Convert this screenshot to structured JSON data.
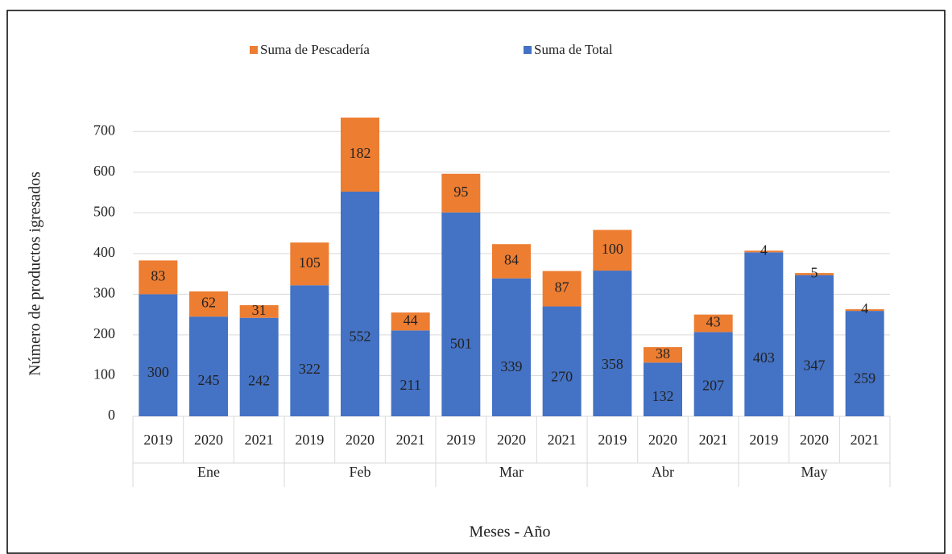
{
  "chart_data": {
    "type": "bar",
    "stacked": true,
    "groups": [
      "Ene",
      "Feb",
      "Mar",
      "Abr",
      "May"
    ],
    "categories": [
      "2019",
      "2020",
      "2021",
      "2019",
      "2020",
      "2021",
      "2019",
      "2020",
      "2021",
      "2019",
      "2020",
      "2021",
      "2019",
      "2020",
      "2021"
    ],
    "series": [
      {
        "name": "Suma de Pescadería",
        "color": "#ed7d31",
        "values": [
          83,
          62,
          31,
          105,
          182,
          44,
          95,
          84,
          87,
          100,
          38,
          43,
          4,
          5,
          4
        ]
      },
      {
        "name": "Suma de Total",
        "color": "#4472c4",
        "values": [
          300,
          245,
          242,
          322,
          552,
          211,
          501,
          339,
          270,
          358,
          132,
          207,
          403,
          347,
          259
        ]
      }
    ],
    "y_label": "Número de productos igresados",
    "x_label": "Meses - Año",
    "ylim": [
      0,
      740
    ],
    "yticks": [
      0,
      100,
      200,
      300,
      400,
      500,
      600,
      700
    ],
    "grid": true,
    "legend": "top"
  }
}
